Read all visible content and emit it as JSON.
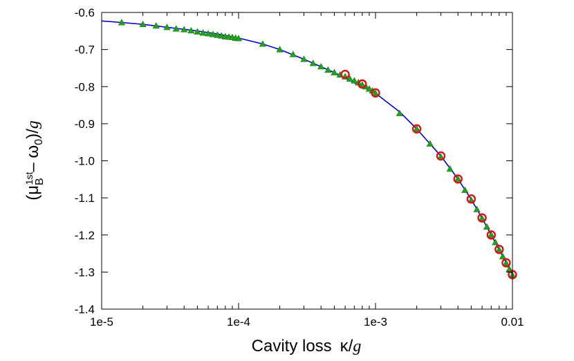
{
  "chart_data": {
    "type": "scatter",
    "xscale": "log",
    "xlim": [
      1e-05,
      0.01
    ],
    "ylim": [
      -1.4,
      -0.6
    ],
    "grid": false,
    "legend": "none",
    "x_ticks": [
      {
        "value": 1e-05,
        "label": "1e-5"
      },
      {
        "value": 0.0001,
        "label": "1e-4"
      },
      {
        "value": 0.001,
        "label": "1e-3"
      },
      {
        "value": 0.01,
        "label": "0.01"
      }
    ],
    "y_ticks": [
      {
        "value": -0.6,
        "label": "-0.6"
      },
      {
        "value": -0.7,
        "label": "-0.7"
      },
      {
        "value": -0.8,
        "label": "-0.8"
      },
      {
        "value": -0.9,
        "label": "-0.9"
      },
      {
        "value": -1.0,
        "label": "-1.0"
      },
      {
        "value": -1.1,
        "label": "-1.1"
      },
      {
        "value": -1.2,
        "label": "-1.2"
      },
      {
        "value": -1.3,
        "label": "-1.3"
      },
      {
        "value": -1.4,
        "label": "-1.4"
      }
    ],
    "xlabel": {
      "text": "Cavity loss",
      "kappa": "κ",
      "slash": "/",
      "g": "g"
    },
    "ylabel": {
      "open": "(μ",
      "sub_B": "B",
      "sup_1st": "1st",
      "minus": "– ω",
      "sub_0": "0",
      "close": ")/",
      "g": "g"
    },
    "series": [
      {
        "marker": "line",
        "color": "#0000cc",
        "x": [
          1e-05,
          1.5e-05,
          2e-05,
          3e-05,
          5e-05,
          7e-05,
          0.0001,
          0.00015,
          0.0002,
          0.0003,
          0.0005,
          0.0007,
          0.001,
          0.0015,
          0.002,
          0.003,
          0.004,
          0.005,
          0.006,
          0.007,
          0.008,
          0.009,
          0.01
        ],
        "y": [
          -0.623,
          -0.628,
          -0.632,
          -0.64,
          -0.65,
          -0.658,
          -0.669,
          -0.685,
          -0.7,
          -0.726,
          -0.762,
          -0.79,
          -0.818,
          -0.868,
          -0.914,
          -0.987,
          -1.049,
          -1.104,
          -1.155,
          -1.2,
          -1.24,
          -1.275,
          -1.308
        ]
      },
      {
        "marker": "triangle",
        "color": "#22a022",
        "x": [
          1.4e-05,
          2e-05,
          2.5e-05,
          3e-05,
          3.5e-05,
          4e-05,
          4.5e-05,
          5e-05,
          5.5e-05,
          6e-05,
          6.5e-05,
          7e-05,
          7.5e-05,
          8e-05,
          8.5e-05,
          9e-05,
          9.5e-05,
          0.0001,
          0.00015,
          0.0002,
          0.00025,
          0.0003,
          0.00035,
          0.0004,
          0.00045,
          0.0005,
          0.00055,
          0.0006,
          0.00065,
          0.0007,
          0.00075,
          0.0008,
          0.00085,
          0.0009,
          0.00095,
          0.001,
          0.0015,
          0.002,
          0.0025,
          0.003,
          0.0035,
          0.004,
          0.0045,
          0.005,
          0.0055,
          0.006,
          0.0065,
          0.007,
          0.0075,
          0.008,
          0.0085,
          0.009,
          0.0095,
          0.01
        ],
        "y": [
          -0.627,
          -0.632,
          -0.636,
          -0.64,
          -0.644,
          -0.646,
          -0.649,
          -0.652,
          -0.655,
          -0.657,
          -0.659,
          -0.661,
          -0.663,
          -0.665,
          -0.666,
          -0.667,
          -0.669,
          -0.67,
          -0.685,
          -0.7,
          -0.713,
          -0.726,
          -0.737,
          -0.746,
          -0.755,
          -0.762,
          -0.768,
          -0.773,
          -0.779,
          -0.784,
          -0.789,
          -0.795,
          -0.8,
          -0.806,
          -0.811,
          -0.818,
          -0.872,
          -0.914,
          -0.954,
          -0.989,
          -1.022,
          -1.049,
          -1.079,
          -1.106,
          -1.131,
          -1.155,
          -1.178,
          -1.2,
          -1.22,
          -1.24,
          -1.258,
          -1.276,
          -1.292,
          -1.308
        ]
      },
      {
        "marker": "circle",
        "color": "#dd1111",
        "x": [
          0.0006,
          0.0008,
          0.001,
          0.002,
          0.003,
          0.004,
          0.005,
          0.006,
          0.007,
          0.008,
          0.009,
          0.01
        ],
        "y": [
          -0.767,
          -0.793,
          -0.817,
          -0.914,
          -0.987,
          -1.049,
          -1.103,
          -1.154,
          -1.2,
          -1.239,
          -1.275,
          -1.307
        ]
      }
    ]
  }
}
